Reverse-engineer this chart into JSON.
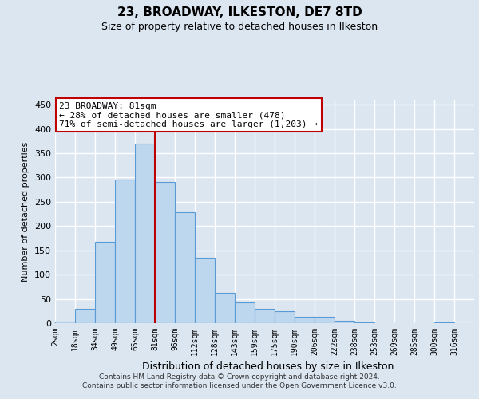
{
  "title1": "23, BROADWAY, ILKESTON, DE7 8TD",
  "title2": "Size of property relative to detached houses in Ilkeston",
  "xlabel": "Distribution of detached houses by size in Ilkeston",
  "ylabel": "Number of detached properties",
  "categories": [
    "2sqm",
    "18sqm",
    "34sqm",
    "49sqm",
    "65sqm",
    "81sqm",
    "96sqm",
    "112sqm",
    "128sqm",
    "143sqm",
    "159sqm",
    "175sqm",
    "190sqm",
    "206sqm",
    "222sqm",
    "238sqm",
    "253sqm",
    "269sqm",
    "285sqm",
    "300sqm",
    "316sqm"
  ],
  "bar_heights": [
    3,
    30,
    167,
    295,
    370,
    290,
    228,
    135,
    62,
    43,
    30,
    25,
    13,
    13,
    5,
    2,
    0,
    0,
    0,
    2
  ],
  "bar_color": "#bdd7ee",
  "bar_edge_color": "#5b9bd5",
  "vline_index": 5,
  "vline_color": "#c00000",
  "property_label": "23 BROADWAY: 81sqm",
  "annotation_line1": "← 28% of detached houses are smaller (478)",
  "annotation_line2": "71% of semi-detached houses are larger (1,203) →",
  "ylim": [
    0,
    460
  ],
  "yticks": [
    0,
    50,
    100,
    150,
    200,
    250,
    300,
    350,
    400,
    450
  ],
  "bg_color": "#dce6f1",
  "grid_color": "#ffffff",
  "footer1": "Contains HM Land Registry data © Crown copyright and database right 2024.",
  "footer2": "Contains public sector information licensed under the Open Government Licence v3.0."
}
